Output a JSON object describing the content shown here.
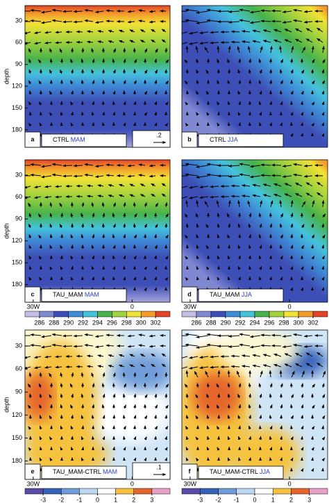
{
  "chart_data": [
    {
      "type": "contour",
      "panel_label": "a",
      "title": "CTRL",
      "season": "MAM",
      "ylabel": "depth",
      "ylim": [
        204,
        9
      ],
      "yticks": [
        30,
        60,
        90,
        120,
        150,
        180
      ],
      "reference_vector": {
        "value": 0.2,
        "label": ".2"
      }
    },
    {
      "type": "contour",
      "panel_label": "b",
      "title": "CTRL",
      "season": "JJA"
    },
    {
      "type": "contour",
      "panel_label": "c",
      "title": "TAU_MAM",
      "season": "MAM",
      "ylabel": "depth",
      "ylim": [
        204,
        9
      ],
      "yticks": [
        30,
        60,
        90,
        120,
        150,
        180
      ],
      "xlim": [
        -32.5,
        11.5
      ],
      "xticks": [
        {
          "value": -30,
          "label": "30W"
        },
        0
      ],
      "colorbar": {
        "lim": [
          284,
          304
        ],
        "ticks": [
          286,
          288,
          290,
          292,
          294,
          296,
          298,
          300,
          302
        ],
        "colors": [
          "#c3bde6",
          "#8088d2",
          "#3d4fb6",
          "#3f8cd6",
          "#45c2dc",
          "#47b34a",
          "#a2d23d",
          "#f1e235",
          "#f39c2c",
          "#e2442a"
        ]
      }
    },
    {
      "type": "contour",
      "panel_label": "d",
      "title": "TAU_MAM",
      "season": "JJA",
      "xlim": [
        -32.5,
        11.5
      ],
      "xticks": [
        {
          "value": -30,
          "label": "30W"
        },
        0
      ],
      "colorbar": {
        "lim": [
          284,
          304
        ],
        "ticks": [
          286,
          288,
          290,
          292,
          294,
          296,
          298,
          300,
          302
        ],
        "colors": [
          "#c3bde6",
          "#8088d2",
          "#3d4fb6",
          "#3f8cd6",
          "#45c2dc",
          "#47b34a",
          "#a2d23d",
          "#f1e235",
          "#f39c2c",
          "#e2442a"
        ]
      }
    },
    {
      "type": "contour",
      "panel_label": "e",
      "title": "TAU_MAM-CTRL",
      "season": "MAM",
      "ylabel": "depth",
      "ylim": [
        204,
        9
      ],
      "yticks": [
        30,
        60,
        90,
        120,
        150,
        180
      ],
      "xlim": [
        -32.5,
        11.5
      ],
      "xticks": [
        {
          "value": -30,
          "label": "30W"
        },
        0
      ],
      "reference_vector": {
        "value": 0.1,
        "label": ".1"
      },
      "colorbar": {
        "lim": [
          -4,
          4
        ],
        "ticks": [
          -3,
          -2,
          -1,
          0,
          1,
          2,
          3
        ],
        "colors": [
          "#5a4aa8",
          "#3462b8",
          "#6f9cd8",
          "#bcd9f1",
          "#ffffff",
          "#f6c23e",
          "#e5652c",
          "#e8a0c8"
        ]
      }
    },
    {
      "type": "contour",
      "panel_label": "f",
      "title": "TAU_MAM-CTRL",
      "season": "JJA",
      "xlim": [
        -32.5,
        11.5
      ],
      "xticks": [
        {
          "value": -30,
          "label": "30W"
        },
        0
      ],
      "colorbar": {
        "lim": [
          -4,
          4
        ],
        "ticks": [
          -3,
          -2,
          -1,
          0,
          1,
          2,
          3
        ],
        "colors": [
          "#5a4aa8",
          "#3462b8",
          "#6f9cd8",
          "#bcd9f1",
          "#ffffff",
          "#f6c23e",
          "#e5652c",
          "#e8a0c8"
        ]
      }
    }
  ]
}
